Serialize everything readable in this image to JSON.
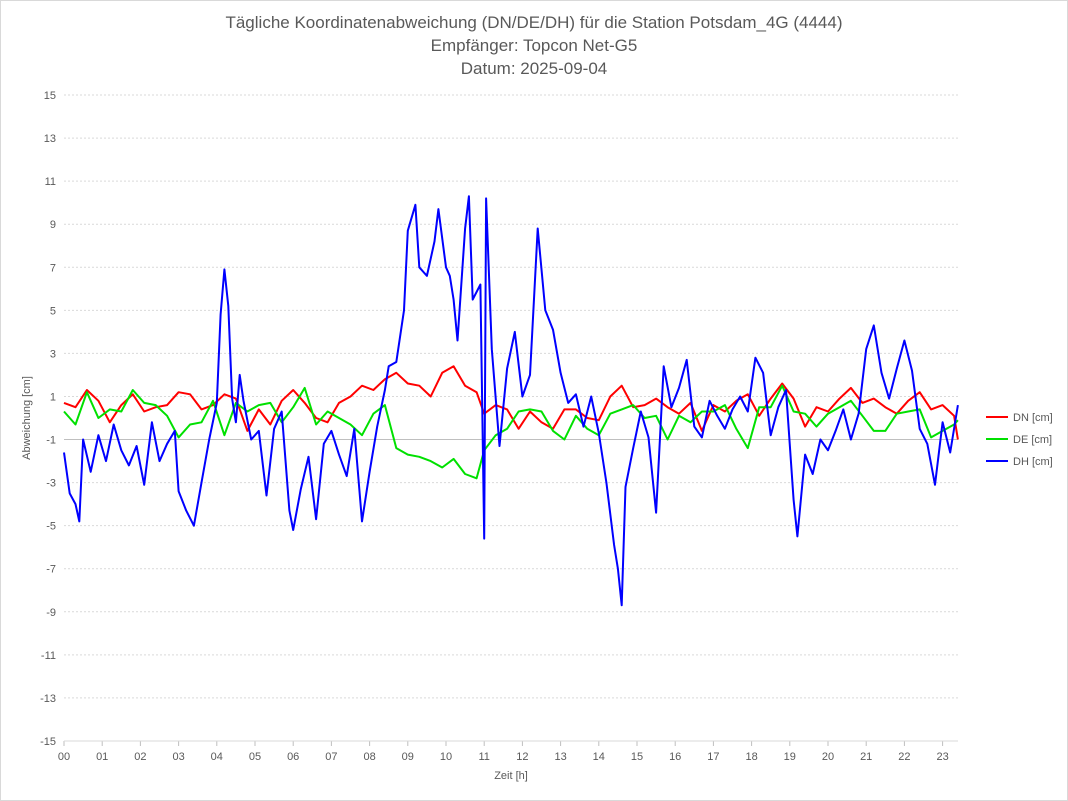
{
  "chart_data": {
    "type": "line",
    "title": "Tägliche Koordinatenabweichung (DN/DE/DH) für die Station Potsdam_4G (4444)",
    "subtitle1": "Empfänger: Topcon Net-G5",
    "subtitle2": "Datum: 2025-09-04",
    "xlabel": "Zeit [h]",
    "ylabel": "Abweichung [cm]",
    "xlim": [
      0,
      23.4
    ],
    "ylim": [
      -15,
      15
    ],
    "ytick_values": [
      15,
      13,
      11,
      9,
      7,
      5,
      3,
      1,
      -1,
      -3,
      -5,
      -7,
      -9,
      -11,
      -13,
      -15
    ],
    "ytick_labels": [
      "15",
      "13",
      "11",
      "9",
      "7",
      "5",
      "3",
      "1",
      "-1",
      "-3",
      "-5",
      "-7",
      "-9",
      "-11",
      "-13",
      "-15"
    ],
    "xtick_labels": [
      "00",
      "01",
      "02",
      "03",
      "04",
      "05",
      "06",
      "07",
      "08",
      "09",
      "10",
      "11",
      "12",
      "13",
      "14",
      "15",
      "16",
      "17",
      "18",
      "19",
      "20",
      "21",
      "22",
      "23"
    ],
    "grid": "horizontal-dotted",
    "legend_position": "right",
    "series": [
      {
        "name": "DN [cm]",
        "color": "#ff0000",
        "points": [
          [
            0,
            0.7
          ],
          [
            0.3,
            0.5
          ],
          [
            0.6,
            1.3
          ],
          [
            0.9,
            0.8
          ],
          [
            1.2,
            -0.2
          ],
          [
            1.5,
            0.6
          ],
          [
            1.8,
            1.1
          ],
          [
            2.1,
            0.3
          ],
          [
            2.4,
            0.5
          ],
          [
            2.7,
            0.6
          ],
          [
            3.0,
            1.2
          ],
          [
            3.3,
            1.1
          ],
          [
            3.6,
            0.4
          ],
          [
            3.9,
            0.6
          ],
          [
            4.2,
            1.1
          ],
          [
            4.5,
            0.9
          ],
          [
            4.8,
            -0.6
          ],
          [
            5.1,
            0.4
          ],
          [
            5.4,
            -0.3
          ],
          [
            5.7,
            0.8
          ],
          [
            6.0,
            1.3
          ],
          [
            6.3,
            0.7
          ],
          [
            6.6,
            0.0
          ],
          [
            6.9,
            -0.2
          ],
          [
            7.2,
            0.7
          ],
          [
            7.5,
            1.0
          ],
          [
            7.8,
            1.5
          ],
          [
            8.1,
            1.3
          ],
          [
            8.4,
            1.8
          ],
          [
            8.7,
            2.1
          ],
          [
            9.0,
            1.6
          ],
          [
            9.3,
            1.5
          ],
          [
            9.6,
            1.0
          ],
          [
            9.9,
            2.1
          ],
          [
            10.2,
            2.4
          ],
          [
            10.5,
            1.5
          ],
          [
            10.8,
            1.2
          ],
          [
            11.0,
            0.2
          ],
          [
            11.3,
            0.6
          ],
          [
            11.6,
            0.4
          ],
          [
            11.9,
            -0.5
          ],
          [
            12.2,
            0.3
          ],
          [
            12.5,
            -0.2
          ],
          [
            12.8,
            -0.5
          ],
          [
            13.1,
            0.4
          ],
          [
            13.4,
            0.4
          ],
          [
            13.7,
            0.0
          ],
          [
            14.0,
            -0.1
          ],
          [
            14.3,
            1.0
          ],
          [
            14.6,
            1.5
          ],
          [
            14.9,
            0.5
          ],
          [
            15.2,
            0.6
          ],
          [
            15.5,
            0.9
          ],
          [
            15.8,
            0.5
          ],
          [
            16.1,
            0.2
          ],
          [
            16.4,
            0.7
          ],
          [
            16.7,
            -0.6
          ],
          [
            17.0,
            0.6
          ],
          [
            17.3,
            0.3
          ],
          [
            17.6,
            0.8
          ],
          [
            17.9,
            1.1
          ],
          [
            18.2,
            0.1
          ],
          [
            18.5,
            0.9
          ],
          [
            18.8,
            1.6
          ],
          [
            19.1,
            0.9
          ],
          [
            19.4,
            -0.4
          ],
          [
            19.7,
            0.5
          ],
          [
            20.0,
            0.3
          ],
          [
            20.3,
            0.9
          ],
          [
            20.6,
            1.4
          ],
          [
            20.9,
            0.7
          ],
          [
            21.2,
            0.9
          ],
          [
            21.5,
            0.5
          ],
          [
            21.8,
            0.2
          ],
          [
            22.1,
            0.8
          ],
          [
            22.4,
            1.2
          ],
          [
            22.7,
            0.4
          ],
          [
            23.0,
            0.6
          ],
          [
            23.3,
            0.1
          ],
          [
            23.4,
            -1.0
          ]
        ]
      },
      {
        "name": "DE [cm]",
        "color": "#00e000",
        "points": [
          [
            0,
            0.3
          ],
          [
            0.3,
            -0.3
          ],
          [
            0.6,
            1.2
          ],
          [
            0.9,
            0.0
          ],
          [
            1.2,
            0.4
          ],
          [
            1.5,
            0.3
          ],
          [
            1.8,
            1.3
          ],
          [
            2.1,
            0.7
          ],
          [
            2.4,
            0.6
          ],
          [
            2.7,
            0.1
          ],
          [
            3.0,
            -0.9
          ],
          [
            3.3,
            -0.3
          ],
          [
            3.6,
            -0.2
          ],
          [
            3.9,
            0.8
          ],
          [
            4.2,
            -0.8
          ],
          [
            4.5,
            0.7
          ],
          [
            4.8,
            0.3
          ],
          [
            5.1,
            0.6
          ],
          [
            5.4,
            0.7
          ],
          [
            5.7,
            -0.2
          ],
          [
            6.0,
            0.5
          ],
          [
            6.3,
            1.4
          ],
          [
            6.6,
            -0.3
          ],
          [
            6.9,
            0.3
          ],
          [
            7.2,
            0.0
          ],
          [
            7.5,
            -0.3
          ],
          [
            7.8,
            -0.8
          ],
          [
            8.1,
            0.2
          ],
          [
            8.4,
            0.6
          ],
          [
            8.7,
            -1.4
          ],
          [
            9.0,
            -1.7
          ],
          [
            9.3,
            -1.8
          ],
          [
            9.6,
            -2.0
          ],
          [
            9.9,
            -2.3
          ],
          [
            10.2,
            -1.9
          ],
          [
            10.5,
            -2.6
          ],
          [
            10.8,
            -2.8
          ],
          [
            11.0,
            -1.5
          ],
          [
            11.3,
            -0.8
          ],
          [
            11.6,
            -0.5
          ],
          [
            11.9,
            0.3
          ],
          [
            12.2,
            0.4
          ],
          [
            12.5,
            0.3
          ],
          [
            12.8,
            -0.6
          ],
          [
            13.1,
            -1.0
          ],
          [
            13.4,
            0.1
          ],
          [
            13.7,
            -0.5
          ],
          [
            14.0,
            -0.8
          ],
          [
            14.3,
            0.2
          ],
          [
            14.6,
            0.4
          ],
          [
            14.9,
            0.6
          ],
          [
            15.2,
            0.0
          ],
          [
            15.5,
            0.1
          ],
          [
            15.8,
            -1.0
          ],
          [
            16.1,
            0.1
          ],
          [
            16.4,
            -0.2
          ],
          [
            16.7,
            0.3
          ],
          [
            17.0,
            0.3
          ],
          [
            17.3,
            0.6
          ],
          [
            17.6,
            -0.5
          ],
          [
            17.9,
            -1.4
          ],
          [
            18.2,
            0.5
          ],
          [
            18.5,
            0.5
          ],
          [
            18.8,
            1.5
          ],
          [
            19.1,
            0.3
          ],
          [
            19.4,
            0.2
          ],
          [
            19.7,
            -0.4
          ],
          [
            20.0,
            0.2
          ],
          [
            20.3,
            0.5
          ],
          [
            20.6,
            0.8
          ],
          [
            20.9,
            0.1
          ],
          [
            21.2,
            -0.6
          ],
          [
            21.5,
            -0.6
          ],
          [
            21.8,
            0.2
          ],
          [
            22.1,
            0.3
          ],
          [
            22.4,
            0.4
          ],
          [
            22.7,
            -0.9
          ],
          [
            23.0,
            -0.6
          ],
          [
            23.3,
            -0.3
          ],
          [
            23.4,
            -0.1
          ]
        ]
      },
      {
        "name": "DH [cm]",
        "color": "#0000ff",
        "points": [
          [
            0,
            -1.6
          ],
          [
            0.15,
            -3.5
          ],
          [
            0.3,
            -4.0
          ],
          [
            0.4,
            -4.8
          ],
          [
            0.5,
            -1.0
          ],
          [
            0.7,
            -2.5
          ],
          [
            0.9,
            -0.8
          ],
          [
            1.1,
            -2.0
          ],
          [
            1.3,
            -0.3
          ],
          [
            1.5,
            -1.5
          ],
          [
            1.7,
            -2.2
          ],
          [
            1.9,
            -1.3
          ],
          [
            2.1,
            -3.1
          ],
          [
            2.3,
            -0.2
          ],
          [
            2.5,
            -2.0
          ],
          [
            2.7,
            -1.2
          ],
          [
            2.9,
            -0.6
          ],
          [
            3.0,
            -3.4
          ],
          [
            3.2,
            -4.3
          ],
          [
            3.4,
            -5.0
          ],
          [
            3.6,
            -3.0
          ],
          [
            3.8,
            -1.0
          ],
          [
            4.0,
            0.7
          ],
          [
            4.1,
            4.8
          ],
          [
            4.2,
            6.9
          ],
          [
            4.3,
            5.2
          ],
          [
            4.4,
            0.9
          ],
          [
            4.5,
            -0.2
          ],
          [
            4.6,
            2.0
          ],
          [
            4.7,
            0.8
          ],
          [
            4.9,
            -1.0
          ],
          [
            5.1,
            -0.6
          ],
          [
            5.3,
            -3.6
          ],
          [
            5.5,
            -0.5
          ],
          [
            5.7,
            0.3
          ],
          [
            5.9,
            -4.3
          ],
          [
            6.0,
            -5.2
          ],
          [
            6.2,
            -3.3
          ],
          [
            6.4,
            -1.8
          ],
          [
            6.6,
            -4.7
          ],
          [
            6.8,
            -1.2
          ],
          [
            7.0,
            -0.6
          ],
          [
            7.2,
            -1.7
          ],
          [
            7.4,
            -2.7
          ],
          [
            7.6,
            -0.5
          ],
          [
            7.8,
            -4.8
          ],
          [
            8.0,
            -2.5
          ],
          [
            8.2,
            -0.4
          ],
          [
            8.4,
            1.3
          ],
          [
            8.5,
            2.4
          ],
          [
            8.7,
            2.6
          ],
          [
            8.9,
            5.0
          ],
          [
            9.0,
            8.7
          ],
          [
            9.2,
            9.9
          ],
          [
            9.3,
            7.0
          ],
          [
            9.5,
            6.6
          ],
          [
            9.7,
            8.2
          ],
          [
            9.8,
            9.7
          ],
          [
            10.0,
            7.0
          ],
          [
            10.1,
            6.6
          ],
          [
            10.2,
            5.5
          ],
          [
            10.3,
            3.6
          ],
          [
            10.5,
            8.8
          ],
          [
            10.6,
            10.3
          ],
          [
            10.7,
            5.5
          ],
          [
            10.9,
            6.2
          ],
          [
            11.0,
            -5.6
          ],
          [
            11.05,
            10.2
          ],
          [
            11.2,
            3.2
          ],
          [
            11.4,
            -1.3
          ],
          [
            11.6,
            2.3
          ],
          [
            11.8,
            4.0
          ],
          [
            12.0,
            1.0
          ],
          [
            12.2,
            2.0
          ],
          [
            12.4,
            8.8
          ],
          [
            12.6,
            5.0
          ],
          [
            12.8,
            4.1
          ],
          [
            13.0,
            2.1
          ],
          [
            13.2,
            0.7
          ],
          [
            13.4,
            1.1
          ],
          [
            13.6,
            -0.4
          ],
          [
            13.8,
            1.0
          ],
          [
            14.0,
            -0.7
          ],
          [
            14.2,
            -3.0
          ],
          [
            14.4,
            -5.9
          ],
          [
            14.5,
            -7.0
          ],
          [
            14.6,
            -8.7
          ],
          [
            14.7,
            -3.2
          ],
          [
            14.9,
            -1.4
          ],
          [
            15.1,
            0.3
          ],
          [
            15.3,
            -0.9
          ],
          [
            15.5,
            -4.4
          ],
          [
            15.7,
            2.4
          ],
          [
            15.9,
            0.5
          ],
          [
            16.1,
            1.4
          ],
          [
            16.3,
            2.7
          ],
          [
            16.5,
            -0.4
          ],
          [
            16.7,
            -0.9
          ],
          [
            16.9,
            0.8
          ],
          [
            17.1,
            0.1
          ],
          [
            17.3,
            -0.5
          ],
          [
            17.5,
            0.4
          ],
          [
            17.7,
            1.0
          ],
          [
            17.9,
            0.3
          ],
          [
            18.1,
            2.8
          ],
          [
            18.3,
            2.1
          ],
          [
            18.5,
            -0.8
          ],
          [
            18.7,
            0.5
          ],
          [
            18.9,
            1.3
          ],
          [
            19.1,
            -3.8
          ],
          [
            19.2,
            -5.5
          ],
          [
            19.4,
            -1.7
          ],
          [
            19.6,
            -2.6
          ],
          [
            19.8,
            -1.0
          ],
          [
            20.0,
            -1.5
          ],
          [
            20.2,
            -0.6
          ],
          [
            20.4,
            0.4
          ],
          [
            20.6,
            -1.0
          ],
          [
            20.8,
            0.2
          ],
          [
            21.0,
            3.2
          ],
          [
            21.2,
            4.3
          ],
          [
            21.4,
            2.1
          ],
          [
            21.6,
            0.9
          ],
          [
            21.8,
            2.3
          ],
          [
            22.0,
            3.6
          ],
          [
            22.2,
            2.2
          ],
          [
            22.4,
            -0.5
          ],
          [
            22.6,
            -1.2
          ],
          [
            22.8,
            -3.1
          ],
          [
            23.0,
            -0.2
          ],
          [
            23.2,
            -1.6
          ],
          [
            23.4,
            0.6
          ]
        ]
      }
    ]
  }
}
